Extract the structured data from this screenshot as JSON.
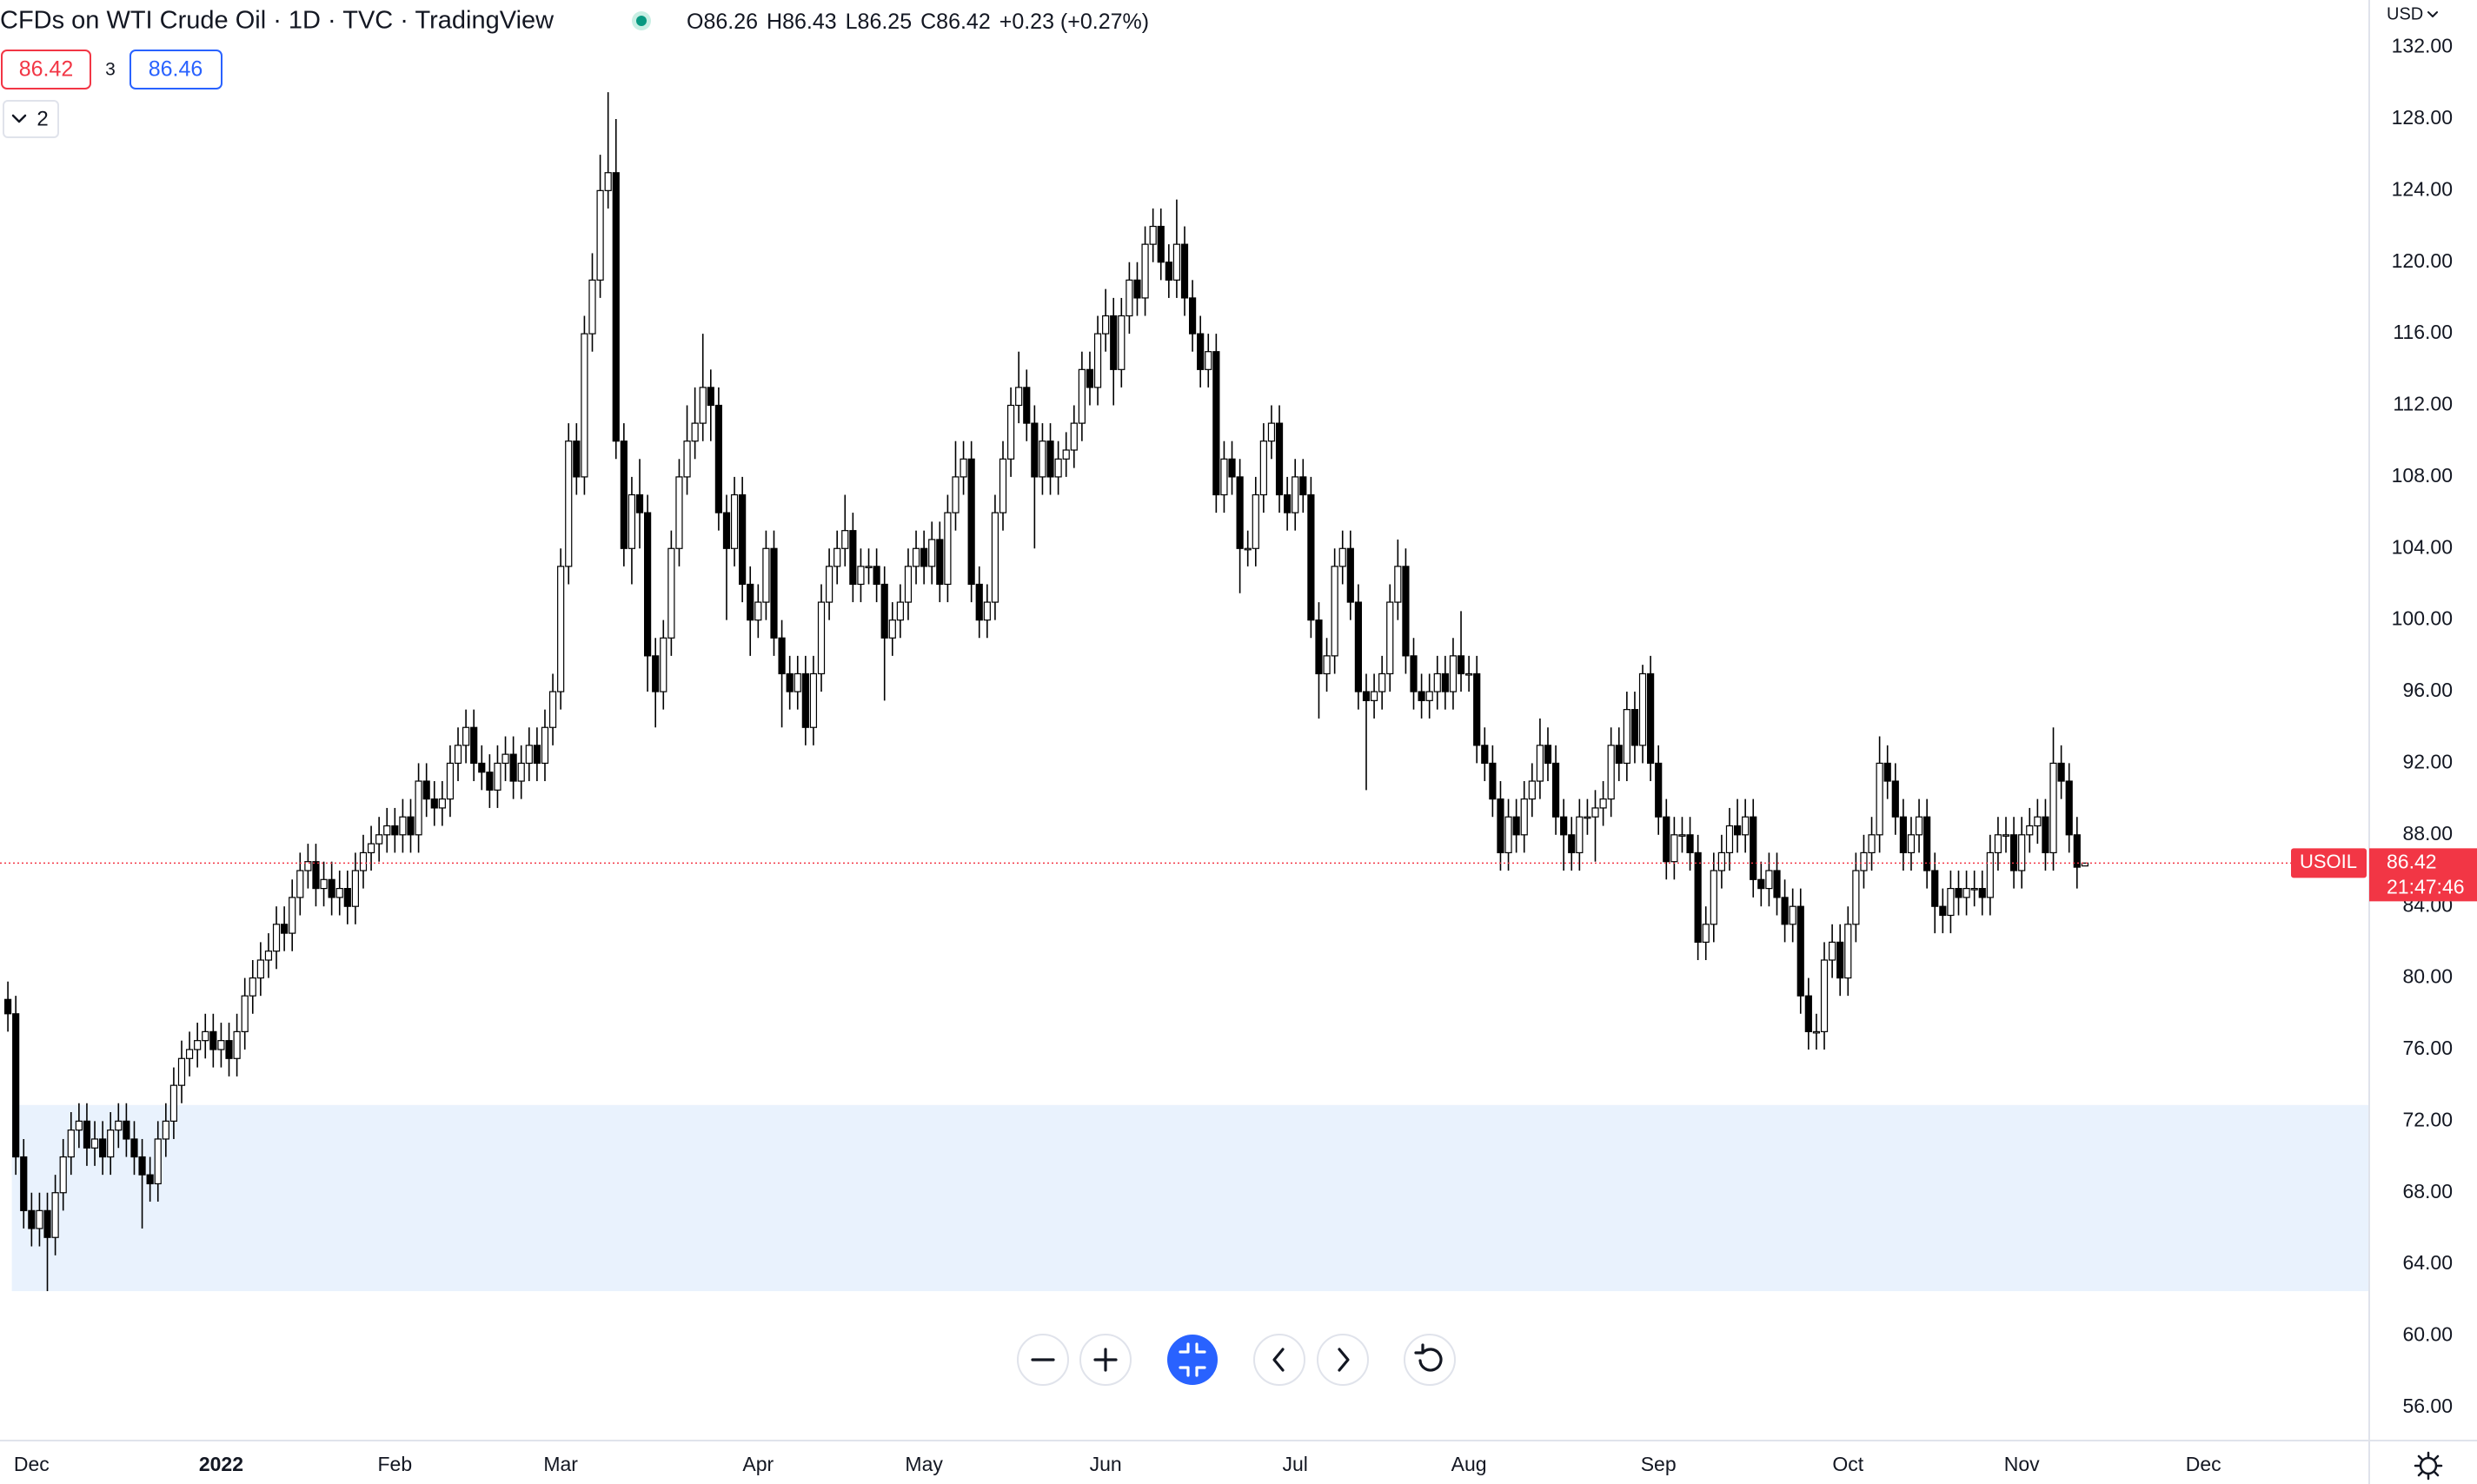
{
  "header": {
    "title": "CFDs on WTI Crude Oil · 1D · TVC · TradingView",
    "ohlc_labels": [
      "O",
      "H",
      "L",
      "C"
    ],
    "change": "+0.23 (+0.27%)"
  },
  "trade": {
    "sell": 86.42,
    "spread": 3,
    "buy": 86.46
  },
  "indicators_toggle": "2",
  "currency": "USD",
  "symbol": "USOIL",
  "countdown": "21:47:46",
  "chart_data": {
    "type": "candlestick",
    "color": "#000000",
    "up_fill": "#ffffff",
    "price_line_color": "#f23645",
    "zones": [
      {
        "from": 62.5,
        "to": 72.9,
        "color": "#e9f2fd"
      }
    ],
    "ylim": [
      54.15,
      134.65
    ],
    "yticks": [
      {
        "value": 56,
        "label": "56.00"
      },
      {
        "value": 60,
        "label": "60.00"
      },
      {
        "value": 64,
        "label": "64.00"
      },
      {
        "value": 68,
        "label": "68.00"
      },
      {
        "value": 72,
        "label": "72.00"
      },
      {
        "value": 76,
        "label": "76.00"
      },
      {
        "value": 80,
        "label": "80.00"
      },
      {
        "value": 84,
        "label": "84.00"
      },
      {
        "value": 88,
        "label": "88.00"
      },
      {
        "value": 92,
        "label": "92.00"
      },
      {
        "value": 96,
        "label": "96.00"
      },
      {
        "value": 100,
        "label": "100.00"
      },
      {
        "value": 104,
        "label": "104.00"
      },
      {
        "value": 108,
        "label": "108.00"
      },
      {
        "value": 112,
        "label": "112.00"
      },
      {
        "value": 116,
        "label": "116.00"
      },
      {
        "value": 120,
        "label": "120.00"
      },
      {
        "value": 124,
        "label": "124.00"
      },
      {
        "value": 128,
        "label": "128.00"
      },
      {
        "value": 132,
        "label": "132.00"
      }
    ],
    "categories": [
      null,
      null,
      null,
      "Dec",
      null,
      null,
      null,
      null,
      null,
      null,
      null,
      null,
      null,
      null,
      null,
      null,
      null,
      null,
      null,
      null,
      null,
      null,
      null,
      null,
      null,
      null,
      null,
      "2022",
      null,
      null,
      null,
      null,
      null,
      null,
      null,
      null,
      null,
      null,
      null,
      null,
      null,
      null,
      null,
      null,
      null,
      null,
      null,
      null,
      null,
      "Feb",
      null,
      null,
      null,
      null,
      null,
      null,
      null,
      null,
      null,
      null,
      null,
      null,
      null,
      null,
      null,
      null,
      null,
      null,
      null,
      null,
      "Mar",
      null,
      null,
      null,
      null,
      null,
      null,
      null,
      null,
      null,
      null,
      null,
      null,
      null,
      null,
      null,
      null,
      null,
      null,
      null,
      null,
      null,
      null,
      null,
      null,
      "Apr",
      null,
      null,
      null,
      null,
      null,
      null,
      null,
      null,
      null,
      null,
      null,
      null,
      null,
      null,
      null,
      null,
      null,
      null,
      null,
      null,
      "May",
      null,
      null,
      null,
      null,
      null,
      null,
      null,
      null,
      null,
      null,
      null,
      null,
      null,
      null,
      null,
      null,
      null,
      null,
      null,
      null,
      null,
      null,
      "Jun",
      null,
      null,
      null,
      null,
      null,
      null,
      null,
      null,
      null,
      null,
      null,
      null,
      null,
      null,
      null,
      null,
      null,
      null,
      null,
      null,
      null,
      null,
      null,
      "Jul",
      null,
      null,
      null,
      null,
      null,
      null,
      null,
      null,
      null,
      null,
      null,
      null,
      null,
      null,
      null,
      null,
      null,
      null,
      null,
      null,
      null,
      "Aug",
      null,
      null,
      null,
      null,
      null,
      null,
      null,
      null,
      null,
      null,
      null,
      null,
      null,
      null,
      null,
      null,
      null,
      null,
      null,
      null,
      null,
      null,
      null,
      "Sep",
      null,
      null,
      null,
      null,
      null,
      null,
      null,
      null,
      null,
      null,
      null,
      null,
      null,
      null,
      null,
      null,
      null,
      null,
      null,
      null,
      null,
      null,
      null,
      "Oct",
      null,
      null,
      null,
      null,
      null,
      null,
      null,
      null,
      null,
      null,
      null,
      null,
      null,
      null,
      null,
      null,
      null,
      null,
      null,
      null,
      null,
      "Nov",
      null,
      null,
      null,
      null,
      null,
      null,
      null,
      null,
      null,
      null,
      null,
      null,
      null,
      null,
      null,
      null,
      null,
      null,
      null,
      null,
      null,
      null,
      "Dec",
      null,
      null,
      null,
      null,
      null,
      null,
      null,
      null,
      null,
      null,
      null,
      null,
      null,
      null,
      null,
      null,
      null,
      null,
      null,
      null,
      null
    ],
    "open": [
      78.8,
      78,
      70,
      67,
      66,
      67,
      65.5,
      68,
      70,
      71.5,
      72,
      70.5,
      71,
      70,
      71.5,
      72,
      71,
      70,
      69,
      68.5,
      71,
      72,
      74,
      75.5,
      76,
      76.5,
      77,
      76,
      76.5,
      75.5,
      77,
      79,
      80,
      81,
      81.5,
      83,
      82.5,
      84.5,
      86,
      86.5,
      85,
      85.5,
      84.5,
      85,
      84,
      86,
      87,
      87.5,
      88,
      88.5,
      88,
      89,
      88,
      91,
      90,
      89.5,
      90,
      92,
      93,
      94,
      92,
      91.5,
      90.5,
      92,
      92.5,
      91,
      92,
      93,
      92,
      94,
      96,
      103,
      110,
      108,
      116,
      119,
      124,
      125,
      110,
      104,
      107,
      106,
      98,
      96,
      99,
      104,
      108,
      110,
      111,
      113,
      112,
      106,
      104,
      107,
      102,
      100,
      101,
      104,
      99,
      97,
      96,
      97,
      94,
      97,
      101,
      103,
      104,
      105,
      102,
      103,
      103,
      102,
      99,
      100,
      101,
      103,
      104,
      103,
      104.5,
      102,
      106,
      108,
      109,
      102,
      100,
      101,
      106,
      109,
      112,
      113,
      111,
      108,
      110,
      108,
      109,
      109.5,
      111,
      114,
      113,
      116,
      117,
      114,
      117,
      119,
      118,
      121,
      122,
      120,
      119,
      121,
      118,
      116,
      114,
      115,
      107,
      109,
      108,
      104,
      104,
      107,
      110,
      111,
      107,
      106,
      108,
      107,
      100,
      97,
      98,
      103,
      104,
      101,
      96,
      95.5,
      96,
      97,
      101,
      103,
      98,
      96,
      95.5,
      96,
      97,
      96,
      98,
      97,
      97,
      93,
      92,
      90,
      87,
      89,
      88,
      90,
      91,
      93,
      92,
      89,
      88,
      87,
      89,
      89,
      89.5,
      90,
      93,
      92,
      95,
      93,
      97,
      92,
      89,
      86.5,
      88,
      88,
      87,
      82,
      83,
      86,
      87,
      88.5,
      88,
      89,
      85.5,
      85,
      86,
      84.5,
      83,
      84,
      79,
      77,
      77,
      81,
      82,
      80,
      83,
      86,
      87,
      88,
      92,
      91,
      89,
      87,
      88,
      89,
      86,
      84,
      83.5,
      85,
      84.5,
      85,
      85,
      84.5,
      87,
      88,
      88,
      86,
      88,
      88.5,
      89,
      87,
      92,
      91,
      88,
      86.26,
      null,
      null,
      null,
      null,
      null,
      null,
      null,
      null,
      null,
      null,
      null,
      null,
      null,
      null,
      null,
      null,
      null,
      null,
      null,
      null,
      null,
      null,
      null,
      null,
      null,
      null,
      null,
      null,
      null,
      null,
      null,
      null,
      null,
      null,
      null,
      null
    ],
    "high": [
      79.8,
      79,
      71,
      68,
      68,
      68,
      69,
      71,
      72.5,
      73,
      73,
      72,
      72,
      72.5,
      73,
      73,
      72,
      71,
      70,
      72,
      73,
      75,
      76.5,
      77,
      77.5,
      78,
      78,
      77.5,
      77.5,
      78,
      80,
      81,
      82,
      82.5,
      84,
      84,
      85.5,
      87,
      87.5,
      87.5,
      86.5,
      86.5,
      86,
      86,
      87,
      88,
      88.5,
      89,
      89.5,
      89.5,
      90,
      90,
      92,
      92,
      91,
      91,
      93,
      94,
      95,
      95,
      93,
      92.5,
      93,
      93.5,
      93.5,
      93,
      94,
      94,
      95,
      97,
      104,
      111,
      111,
      117,
      120.5,
      126,
      129.5,
      128,
      111,
      108,
      109,
      107,
      99,
      100,
      105,
      109,
      112,
      113,
      116,
      114,
      113,
      107,
      108,
      108,
      103,
      102,
      105,
      105,
      100,
      98,
      98,
      98,
      98,
      102,
      104,
      105,
      107,
      106,
      104,
      104,
      104,
      103,
      101,
      102,
      104,
      105,
      105,
      105.5,
      105.5,
      107,
      110,
      110,
      110,
      103,
      102,
      107,
      110,
      113,
      115,
      114,
      112,
      111,
      111,
      110,
      110.5,
      112,
      115,
      115,
      117,
      118.5,
      118,
      118,
      120,
      120,
      122,
      123,
      123,
      121,
      123.5,
      122,
      119,
      117,
      116,
      116,
      110,
      110,
      109,
      105,
      108,
      111,
      112,
      112,
      108,
      109,
      109,
      108,
      101,
      99,
      104,
      105,
      105,
      102,
      97,
      97,
      98,
      102,
      104.5,
      104,
      99,
      97,
      97,
      98,
      98,
      99,
      100.5,
      98,
      98,
      94,
      93,
      91,
      90,
      90,
      91,
      92,
      94.5,
      94,
      93,
      90,
      89,
      90,
      90,
      90.5,
      91,
      94,
      94,
      96,
      96,
      97.5,
      98,
      93,
      90,
      89,
      89,
      89,
      88,
      84,
      87,
      88,
      89.5,
      90,
      90,
      90,
      86.5,
      87,
      87,
      85.5,
      85,
      85,
      80,
      78,
      82,
      83,
      83,
      84,
      87,
      88,
      89,
      93.5,
      93,
      92,
      90,
      89,
      90,
      90,
      87,
      85,
      86,
      86,
      86,
      86,
      86,
      88,
      89,
      89,
      89,
      89,
      89.5,
      90,
      90,
      94,
      93,
      92,
      89,
      86.43,
      null,
      null,
      null,
      null,
      null,
      null,
      null,
      null,
      null,
      null,
      null,
      null,
      null,
      null,
      null,
      null,
      null,
      null,
      null,
      null,
      null,
      null,
      null,
      null,
      null,
      null,
      null,
      null,
      null,
      null,
      null,
      null,
      null,
      null,
      null,
      null
    ],
    "low": [
      77,
      69,
      66,
      65,
      65,
      62.5,
      64.5,
      67,
      69,
      70.5,
      69.5,
      69.5,
      69,
      69,
      70.5,
      70,
      69,
      66,
      67.5,
      67.5,
      70,
      71,
      73,
      74.5,
      75,
      75.5,
      75,
      75,
      74.5,
      74.5,
      76,
      78,
      79,
      80,
      80.5,
      81.5,
      81.5,
      83.5,
      85,
      84,
      84,
      83.5,
      83.5,
      83,
      83,
      85,
      86,
      86.5,
      87,
      87,
      87,
      87,
      87,
      89,
      88.5,
      88.5,
      89,
      91,
      92,
      91,
      90.5,
      89.5,
      89.5,
      91,
      90,
      90,
      91,
      91,
      91,
      93,
      95,
      102,
      107,
      107,
      115,
      118,
      123,
      109,
      103,
      102,
      104,
      96,
      94,
      95,
      98,
      103,
      107,
      109,
      110,
      110,
      105,
      100,
      103,
      101,
      98,
      99,
      100,
      98,
      94,
      95,
      95,
      93,
      93,
      96,
      100,
      102,
      103,
      101,
      101,
      102,
      101,
      95.5,
      98,
      99,
      100,
      102,
      102,
      102,
      101,
      101,
      105,
      107,
      101,
      99,
      99,
      100,
      105,
      108,
      111,
      110,
      104,
      107,
      107,
      107,
      108,
      108.5,
      110,
      112,
      112,
      115,
      112,
      113,
      116,
      117,
      117,
      120,
      119,
      118,
      118,
      117,
      115,
      113,
      113,
      106,
      106,
      107,
      101.5,
      103,
      103,
      106,
      109,
      106,
      105,
      105,
      106,
      99,
      94.5,
      96,
      97,
      102,
      100,
      95,
      90.5,
      94.5,
      95,
      96,
      100,
      97,
      95,
      94.5,
      94.5,
      95,
      95,
      95,
      96,
      96,
      92,
      91,
      89,
      86,
      86,
      87,
      87,
      89,
      90,
      91,
      88,
      86,
      86,
      86,
      88,
      86.5,
      88.5,
      89,
      91,
      91,
      92,
      92,
      91,
      88,
      85.5,
      85.5,
      87,
      86,
      81,
      81,
      82,
      85,
      86,
      87,
      87,
      84.5,
      84,
      84,
      83.5,
      82,
      82,
      78,
      76,
      76,
      76,
      80,
      79,
      79,
      82,
      85,
      86,
      87,
      90,
      88,
      86,
      86,
      87,
      85,
      82.5,
      82.5,
      82.5,
      83.5,
      83.5,
      84,
      83.5,
      83.5,
      86,
      87,
      85,
      85,
      87,
      87.5,
      86,
      86,
      90,
      87,
      85,
      86.25,
      null,
      null,
      null,
      null,
      null,
      null,
      null,
      null,
      null,
      null,
      null,
      null,
      null,
      null,
      null,
      null,
      null,
      null,
      null,
      null,
      null,
      null,
      null,
      null,
      null,
      null,
      null,
      null,
      null,
      null,
      null,
      null,
      null,
      null,
      null,
      null
    ],
    "close": [
      78,
      70,
      67,
      66,
      67,
      65.5,
      68,
      70,
      71.5,
      72,
      70.5,
      71,
      70,
      71.5,
      72,
      71,
      70,
      69,
      68.5,
      71,
      72,
      74,
      75.5,
      76,
      76.5,
      77,
      76,
      76.5,
      75.5,
      77,
      79,
      80,
      81,
      81.5,
      83,
      82.5,
      84.5,
      86,
      86.5,
      85,
      85.5,
      84.5,
      85,
      84,
      86,
      87,
      87.5,
      88,
      88.5,
      88,
      89,
      88,
      91,
      90,
      89.5,
      90,
      92,
      93,
      94,
      92,
      91.5,
      90.5,
      92,
      92.5,
      91,
      92,
      93,
      92,
      94,
      96,
      103,
      110,
      108,
      116,
      119,
      124,
      125,
      110,
      104,
      107,
      106,
      98,
      96,
      99,
      104,
      108,
      110,
      111,
      113,
      112,
      106,
      104,
      107,
      102,
      100,
      101,
      104,
      99,
      97,
      96,
      97,
      94,
      97,
      101,
      103,
      104,
      105,
      102,
      103,
      103,
      102,
      99,
      100,
      101,
      103,
      104,
      103,
      104.5,
      102,
      106,
      108,
      109,
      102,
      100,
      101,
      106,
      109,
      112,
      113,
      111,
      108,
      110,
      108,
      109,
      109.5,
      111,
      114,
      113,
      116,
      117,
      114,
      117,
      119,
      118,
      121,
      122,
      120,
      119,
      121,
      118,
      116,
      114,
      115,
      107,
      109,
      108,
      104,
      104,
      107,
      110,
      111,
      107,
      106,
      108,
      107,
      100,
      97,
      98,
      103,
      104,
      101,
      96,
      95.5,
      96,
      97,
      101,
      103,
      98,
      96,
      95.5,
      96,
      97,
      96,
      98,
      97,
      97,
      93,
      92,
      90,
      87,
      89,
      88,
      90,
      91,
      93,
      92,
      89,
      88,
      87,
      89,
      89,
      89.5,
      90,
      93,
      92,
      95,
      93,
      97,
      92,
      89,
      86.5,
      88,
      88,
      87,
      82,
      83,
      86,
      87,
      88.5,
      88,
      89,
      85.5,
      85,
      86,
      84.5,
      83,
      84,
      79,
      77,
      77,
      81,
      82,
      80,
      83,
      86,
      87,
      88,
      92,
      91,
      89,
      87,
      88,
      89,
      86,
      84,
      83.5,
      85,
      84.5,
      85,
      85,
      84.5,
      87,
      88,
      88,
      86,
      88,
      88.5,
      89,
      87,
      92,
      91,
      88,
      86.19,
      86.42,
      null,
      null,
      null,
      null,
      null,
      null,
      null,
      null,
      null,
      null,
      null,
      null,
      null,
      null,
      null,
      null,
      null,
      null,
      null,
      null,
      null,
      null,
      null,
      null,
      null,
      null,
      null,
      null,
      null,
      null,
      null,
      null,
      null,
      null,
      null,
      null
    ]
  }
}
